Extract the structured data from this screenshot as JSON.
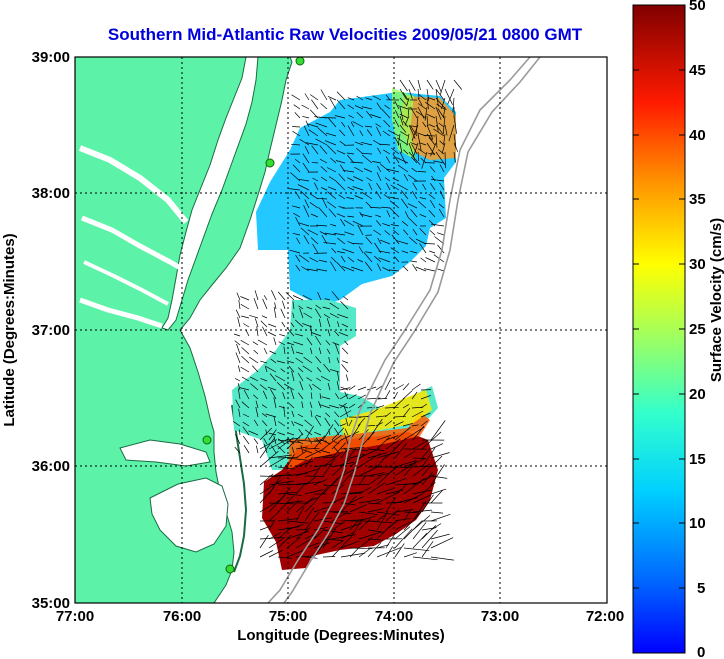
{
  "title": "Southern Mid-Atlantic Raw Velocities 2009/05/21 0800 GMT",
  "x_axis": {
    "label": "Longitude (Degrees:Minutes)",
    "ticks": [
      "77:00",
      "76:00",
      "75:00",
      "74:00",
      "73:00",
      "72:00"
    ]
  },
  "y_axis": {
    "label": "Latitude (Degrees:Minutes)",
    "ticks": [
      "39:00",
      "38:00",
      "37:00",
      "36:00",
      "35:00"
    ]
  },
  "colorbar": {
    "label": "Surface Velocity (cm/s)",
    "ticks": [
      "50",
      "45",
      "40",
      "35",
      "30",
      "25",
      "20",
      "15",
      "10",
      "5",
      "0"
    ],
    "min": 0,
    "max": 50,
    "colormap": "jet"
  },
  "map": {
    "lon_range": [
      -77,
      -72
    ],
    "lat_range": [
      35,
      39
    ],
    "land_color": "#5cf2a8",
    "station_color": "#33dd33",
    "grid": "dotted"
  }
}
